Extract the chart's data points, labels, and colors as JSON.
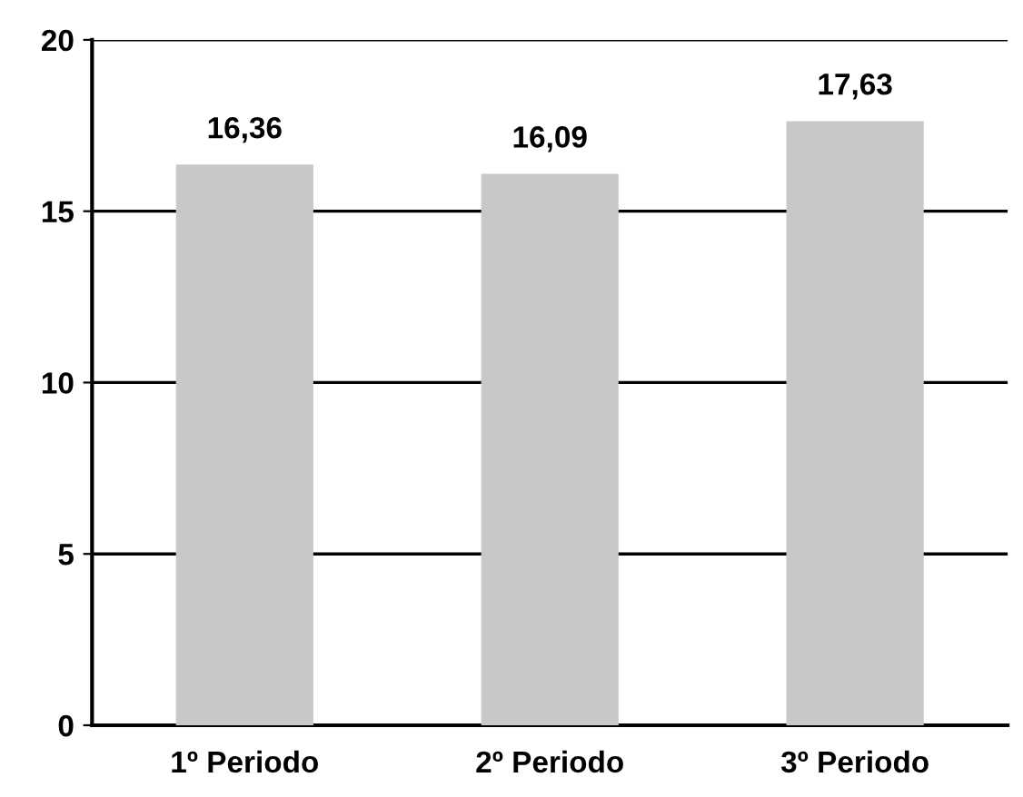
{
  "chart_data": {
    "type": "bar",
    "categories": [
      "1º Periodo",
      "2º Periodo",
      "3º Periodo"
    ],
    "values": [
      16.36,
      16.09,
      17.63
    ],
    "color": "#c8c8c8",
    "value_labels": [
      "16,36",
      "16,09",
      "17,63"
    ],
    "ylim": [
      0,
      20
    ],
    "yticks": [
      0,
      5,
      10,
      15,
      20
    ],
    "grid": "y"
  }
}
